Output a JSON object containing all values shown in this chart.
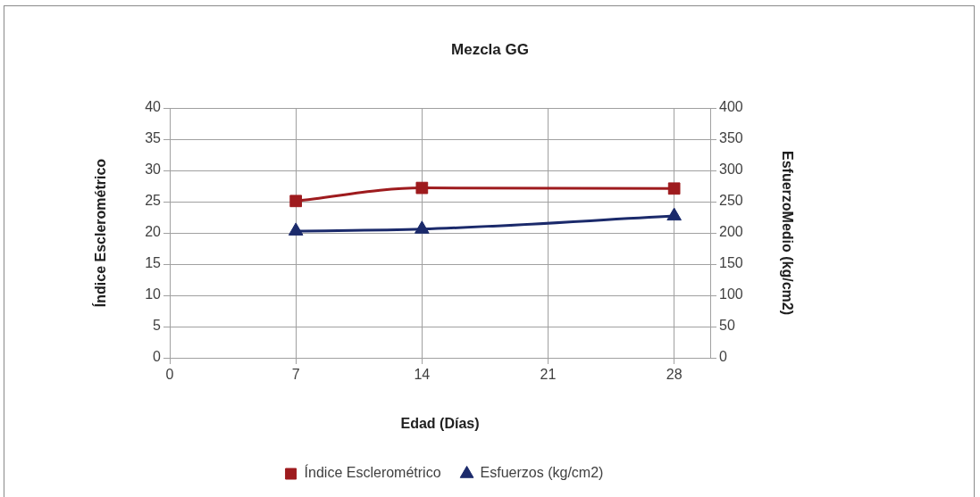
{
  "chart_data": {
    "type": "line",
    "title": "Mezcla GG",
    "xlabel": "Edad (Días)",
    "ylabel": "Índice Esclerométrico",
    "y2label": "EsfuerzoMedio (kg/cm2)",
    "x": [
      7,
      14,
      28
    ],
    "xlim": [
      0,
      30
    ],
    "xticks": [
      0,
      7,
      14,
      21,
      28
    ],
    "ylim": [
      0,
      40
    ],
    "yticks": [
      0,
      5,
      10,
      15,
      20,
      25,
      30,
      35,
      40
    ],
    "y2lim": [
      0,
      400
    ],
    "y2ticks": [
      0,
      50,
      100,
      150,
      200,
      250,
      300,
      350,
      400
    ],
    "grid": true,
    "legend": "bottom",
    "line_style": "solid",
    "series": [
      {
        "name": "Índice Esclerométrico",
        "color": "#9e1b1e",
        "marker": "square",
        "values": [
          25.1,
          27.2,
          27.1
        ]
      },
      {
        "name": "Esfuerzos (kg/cm2)",
        "color": "#1b2a6b",
        "marker": "triangle",
        "axis": "y2",
        "values": [
          203,
          206,
          227
        ]
      }
    ]
  }
}
